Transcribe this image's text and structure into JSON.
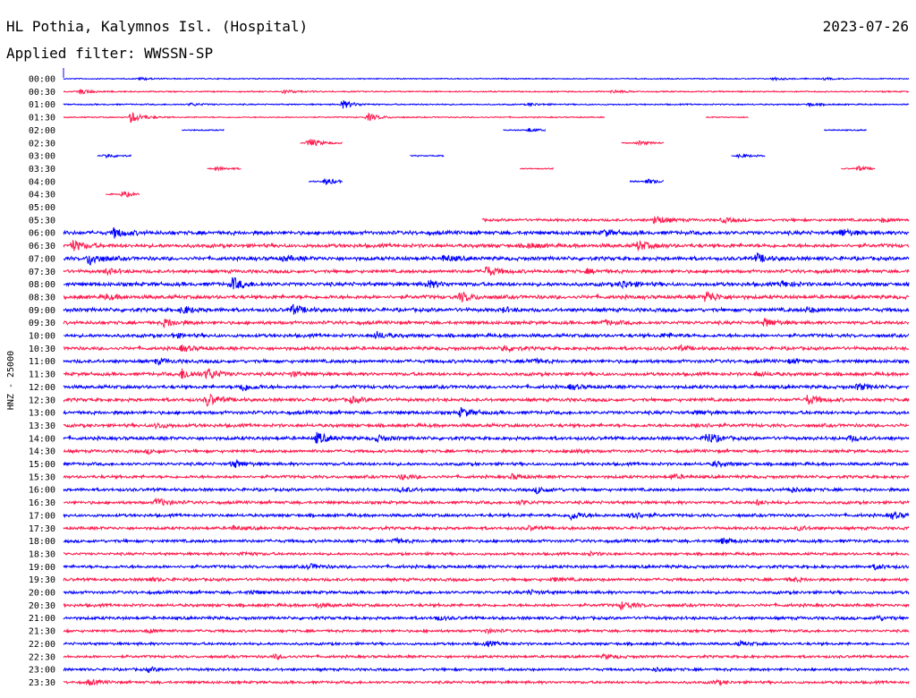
{
  "header": {
    "station": "HL Pothia, Kalymnos Isl. (Hospital)",
    "date": "2023-07-26",
    "filter_text": "Applied filter: WWSSN-SP"
  },
  "chart_data": {
    "type": "line",
    "kind": "helicorder",
    "ylabel": "HNZ - 25000",
    "row_labels": [
      "00:00",
      "00:30",
      "01:00",
      "01:30",
      "02:00",
      "02:30",
      "03:00",
      "03:30",
      "04:00",
      "04:30",
      "05:00",
      "05:30",
      "06:00",
      "06:30",
      "07:00",
      "07:30",
      "08:00",
      "08:30",
      "09:00",
      "09:30",
      "10:00",
      "10:30",
      "11:00",
      "11:30",
      "12:00",
      "12:30",
      "13:00",
      "13:30",
      "14:00",
      "14:30",
      "15:00",
      "15:30",
      "16:00",
      "16:30",
      "17:00",
      "17:30",
      "18:00",
      "18:30",
      "19:00",
      "19:30",
      "20:00",
      "20:30",
      "21:00",
      "21:30",
      "22:00",
      "22:30",
      "23:00",
      "23:30"
    ],
    "colors": {
      "even": "#0000ff",
      "odd": "#ff1a4d"
    },
    "traces_note": "Each row = 30 min of seismogram; amplitude envelope (0–1, relative) with data segments given as fractions of row length",
    "rows": [
      {
        "segments": [
          [
            0,
            1
          ]
        ],
        "noise": 0.08,
        "events": [
          [
            0.09,
            0.3
          ],
          [
            0.84,
            0.3
          ],
          [
            0.9,
            0.2
          ]
        ]
      },
      {
        "segments": [
          [
            0,
            1
          ]
        ],
        "noise": 0.12,
        "events": [
          [
            0.02,
            0.5
          ],
          [
            0.26,
            0.4
          ],
          [
            0.65,
            0.3
          ]
        ]
      },
      {
        "segments": [
          [
            0,
            1
          ]
        ],
        "noise": 0.12,
        "events": [
          [
            0.33,
            0.9
          ],
          [
            0.15,
            0.3
          ],
          [
            0.55,
            0.3
          ],
          [
            0.88,
            0.3
          ]
        ]
      },
      {
        "segments": [
          [
            0,
            0.64
          ],
          [
            0.76,
            0.81
          ]
        ],
        "noise": 0.1,
        "events": [
          [
            0.08,
            1.2
          ],
          [
            0.36,
            0.8
          ]
        ]
      },
      {
        "segments": [
          [
            0.14,
            0.19
          ],
          [
            0.52,
            0.57
          ],
          [
            0.9,
            0.95
          ]
        ],
        "noise": 0.1,
        "events": [
          [
            0.55,
            0.4
          ]
        ]
      },
      {
        "segments": [
          [
            0.28,
            0.33
          ],
          [
            0.66,
            0.71
          ]
        ],
        "noise": 0.1,
        "events": [
          [
            0.29,
            1.0
          ],
          [
            0.68,
            0.4
          ]
        ]
      },
      {
        "segments": [
          [
            0.04,
            0.08
          ],
          [
            0.41,
            0.45
          ],
          [
            0.79,
            0.83
          ]
        ],
        "noise": 0.1,
        "events": [
          [
            0.05,
            0.4
          ],
          [
            0.8,
            0.4
          ]
        ]
      },
      {
        "segments": [
          [
            0.17,
            0.21
          ],
          [
            0.54,
            0.58
          ],
          [
            0.92,
            0.96
          ]
        ],
        "noise": 0.1,
        "events": [
          [
            0.18,
            0.4
          ],
          [
            0.94,
            0.5
          ]
        ]
      },
      {
        "segments": [
          [
            0.29,
            0.33
          ],
          [
            0.67,
            0.71
          ]
        ],
        "noise": 0.12,
        "events": [
          [
            0.31,
            0.7
          ],
          [
            0.69,
            0.5
          ]
        ]
      },
      {
        "segments": [
          [
            0.05,
            0.09
          ]
        ],
        "noise": 0.15,
        "events": [
          [
            0.07,
            0.6
          ]
        ]
      },
      {
        "segments": [],
        "noise": 0,
        "events": []
      },
      {
        "segments": [
          [
            0.495,
            1
          ]
        ],
        "noise": 0.3,
        "events": [
          [
            0.7,
            1.0
          ],
          [
            0.78,
            0.5
          ],
          [
            0.97,
            0.4
          ]
        ]
      },
      {
        "segments": [
          [
            0,
            1
          ]
        ],
        "noise": 0.45,
        "events": [
          [
            0.06,
            1.0
          ],
          [
            0.64,
            0.6
          ],
          [
            0.92,
            0.8
          ]
        ]
      },
      {
        "segments": [
          [
            0,
            1
          ]
        ],
        "noise": 0.45,
        "events": [
          [
            0.01,
            1.2
          ],
          [
            0.68,
            1.0
          ],
          [
            0.55,
            0.5
          ]
        ]
      },
      {
        "segments": [
          [
            0,
            1
          ]
        ],
        "noise": 0.45,
        "events": [
          [
            0.03,
            1.4
          ],
          [
            0.26,
            0.5
          ],
          [
            0.82,
            0.9
          ],
          [
            0.45,
            0.6
          ]
        ]
      },
      {
        "segments": [
          [
            0,
            1
          ]
        ],
        "noise": 0.4,
        "events": [
          [
            0.05,
            0.6
          ],
          [
            0.5,
            1.1
          ],
          [
            0.62,
            0.4
          ]
        ]
      },
      {
        "segments": [
          [
            0,
            1
          ]
        ],
        "noise": 0.45,
        "events": [
          [
            0.2,
            1.3
          ],
          [
            0.43,
            0.8
          ],
          [
            0.66,
            0.8
          ],
          [
            0.85,
            0.6
          ]
        ]
      },
      {
        "segments": [
          [
            0,
            1
          ]
        ],
        "noise": 0.45,
        "events": [
          [
            0.05,
            0.5
          ],
          [
            0.47,
            1.0
          ],
          [
            0.76,
            1.2
          ]
        ]
      },
      {
        "segments": [
          [
            0,
            1
          ]
        ],
        "noise": 0.45,
        "events": [
          [
            0.14,
            0.8
          ],
          [
            0.27,
            1.0
          ],
          [
            0.52,
            0.4
          ],
          [
            0.88,
            0.5
          ]
        ]
      },
      {
        "segments": [
          [
            0,
            1
          ]
        ],
        "noise": 0.4,
        "events": [
          [
            0.12,
            0.9
          ],
          [
            0.83,
            0.9
          ],
          [
            0.64,
            0.5
          ]
        ]
      },
      {
        "segments": [
          [
            0,
            1
          ]
        ],
        "noise": 0.4,
        "events": [
          [
            0.37,
            0.7
          ],
          [
            0.13,
            0.4
          ],
          [
            0.71,
            0.4
          ]
        ]
      },
      {
        "segments": [
          [
            0,
            1
          ]
        ],
        "noise": 0.4,
        "events": [
          [
            0.14,
            0.6
          ],
          [
            0.52,
            0.6
          ],
          [
            0.73,
            0.4
          ]
        ]
      },
      {
        "segments": [
          [
            0,
            1
          ]
        ],
        "noise": 0.4,
        "events": [
          [
            0.11,
            0.5
          ],
          [
            0.55,
            0.5
          ],
          [
            0.86,
            0.4
          ]
        ]
      },
      {
        "segments": [
          [
            0,
            1
          ]
        ],
        "noise": 0.4,
        "events": [
          [
            0.14,
            1.1
          ],
          [
            0.17,
            1.2
          ],
          [
            0.27,
            0.5
          ],
          [
            0.82,
            0.5
          ]
        ]
      },
      {
        "segments": [
          [
            0,
            1
          ]
        ],
        "noise": 0.4,
        "events": [
          [
            0.21,
            0.9
          ],
          [
            0.6,
            0.5
          ],
          [
            0.94,
            0.7
          ]
        ]
      },
      {
        "segments": [
          [
            0,
            1
          ]
        ],
        "noise": 0.4,
        "events": [
          [
            0.17,
            1.3
          ],
          [
            0.34,
            0.6
          ],
          [
            0.88,
            1.0
          ]
        ]
      },
      {
        "segments": [
          [
            0,
            1
          ]
        ],
        "noise": 0.4,
        "events": [
          [
            0.47,
            0.9
          ],
          [
            0.75,
            0.4
          ]
        ]
      },
      {
        "segments": [
          [
            0,
            1
          ]
        ],
        "noise": 0.4,
        "events": [
          [
            0.11,
            0.5
          ],
          [
            0.75,
            0.5
          ]
        ]
      },
      {
        "segments": [
          [
            0,
            1
          ]
        ],
        "noise": 0.4,
        "events": [
          [
            0.3,
            1.2
          ],
          [
            0.37,
            0.6
          ],
          [
            0.76,
            1.2
          ],
          [
            0.93,
            0.5
          ]
        ]
      },
      {
        "segments": [
          [
            0,
            1
          ]
        ],
        "noise": 0.35,
        "events": [
          [
            0.1,
            0.4
          ],
          [
            0.6,
            0.4
          ]
        ]
      },
      {
        "segments": [
          [
            0,
            1
          ]
        ],
        "noise": 0.35,
        "events": [
          [
            0.2,
            0.8
          ],
          [
            0.77,
            0.5
          ]
        ]
      },
      {
        "segments": [
          [
            0,
            1
          ]
        ],
        "noise": 0.35,
        "events": [
          [
            0.4,
            0.5
          ],
          [
            0.53,
            0.5
          ],
          [
            0.72,
            0.5
          ]
        ]
      },
      {
        "segments": [
          [
            0,
            1
          ]
        ],
        "noise": 0.35,
        "events": [
          [
            0.4,
            0.5
          ],
          [
            0.56,
            0.7
          ],
          [
            0.86,
            0.5
          ]
        ]
      },
      {
        "segments": [
          [
            0,
            1
          ]
        ],
        "noise": 0.35,
        "events": [
          [
            0.11,
            0.9
          ],
          [
            0.54,
            0.4
          ],
          [
            0.82,
            0.4
          ]
        ]
      },
      {
        "segments": [
          [
            0,
            1
          ]
        ],
        "noise": 0.35,
        "events": [
          [
            0.6,
            0.9
          ],
          [
            0.67,
            1.0
          ],
          [
            0.98,
            0.7
          ]
        ]
      },
      {
        "segments": [
          [
            0,
            1
          ]
        ],
        "noise": 0.35,
        "events": [
          [
            0.2,
            0.4
          ],
          [
            0.55,
            0.4
          ],
          [
            0.87,
            0.4
          ]
        ]
      },
      {
        "segments": [
          [
            0,
            1
          ]
        ],
        "noise": 0.35,
        "events": [
          [
            0.39,
            0.4
          ],
          [
            0.78,
            0.6
          ]
        ]
      },
      {
        "segments": [
          [
            0,
            1
          ]
        ],
        "noise": 0.3,
        "events": [
          [
            0.21,
            0.4
          ],
          [
            0.62,
            0.4
          ]
        ]
      },
      {
        "segments": [
          [
            0,
            1
          ]
        ],
        "noise": 0.35,
        "events": [
          [
            0.29,
            0.5
          ],
          [
            0.96,
            0.5
          ]
        ]
      },
      {
        "segments": [
          [
            0,
            1
          ]
        ],
        "noise": 0.35,
        "events": [
          [
            0.1,
            0.4
          ],
          [
            0.58,
            0.4
          ],
          [
            0.86,
            0.4
          ]
        ]
      },
      {
        "segments": [
          [
            0,
            1
          ]
        ],
        "noise": 0.35,
        "events": [
          [
            0.22,
            0.4
          ],
          [
            0.55,
            0.4
          ]
        ]
      },
      {
        "segments": [
          [
            0,
            1
          ]
        ],
        "noise": 0.35,
        "events": [
          [
            0.66,
            0.8
          ],
          [
            0.3,
            0.4
          ]
        ]
      },
      {
        "segments": [
          [
            0,
            1
          ]
        ],
        "noise": 0.35,
        "events": [
          [
            0.44,
            0.4
          ],
          [
            0.96,
            0.5
          ]
        ]
      },
      {
        "segments": [
          [
            0,
            1
          ]
        ],
        "noise": 0.3,
        "events": [
          [
            0.1,
            0.4
          ],
          [
            0.5,
            0.4
          ]
        ]
      },
      {
        "segments": [
          [
            0,
            1
          ]
        ],
        "noise": 0.3,
        "events": [
          [
            0.5,
            0.5
          ],
          [
            0.8,
            0.4
          ]
        ]
      },
      {
        "segments": [
          [
            0,
            1
          ]
        ],
        "noise": 0.3,
        "events": [
          [
            0.25,
            0.4
          ],
          [
            0.64,
            0.4
          ]
        ]
      },
      {
        "segments": [
          [
            0,
            1
          ]
        ],
        "noise": 0.3,
        "events": [
          [
            0.1,
            0.4
          ],
          [
            0.7,
            0.4
          ]
        ]
      },
      {
        "segments": [
          [
            0,
            1
          ]
        ],
        "noise": 0.3,
        "events": [
          [
            0.03,
            0.5
          ],
          [
            0.77,
            0.4
          ]
        ]
      }
    ]
  }
}
